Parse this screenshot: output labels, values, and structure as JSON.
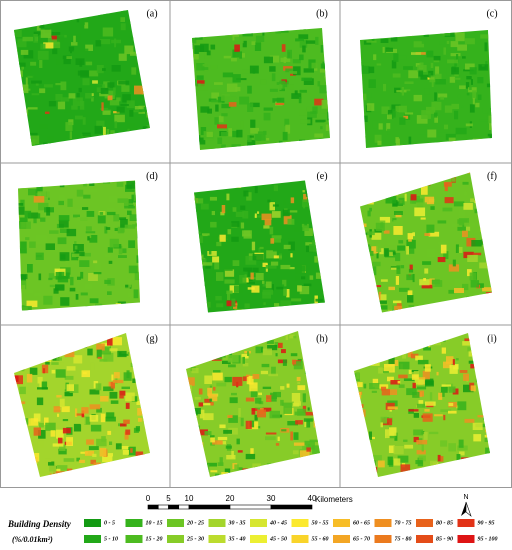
{
  "panels": [
    {
      "label": "(a)"
    },
    {
      "label": "(b)"
    },
    {
      "label": "(c)"
    },
    {
      "label": "(d)"
    },
    {
      "label": "(e)"
    },
    {
      "label": "(f)"
    },
    {
      "label": "(g)"
    },
    {
      "label": "(h)"
    },
    {
      "label": "(i)"
    }
  ],
  "scale_bar": {
    "labels": [
      "0",
      "5",
      "10",
      "20",
      "30",
      "40"
    ],
    "unit": "Kilometers"
  },
  "north_arrow": {
    "label": "N"
  },
  "legend": {
    "title": "Building Density",
    "unit": "(%/0.01km²)",
    "items": [
      {
        "label": "0 - 5",
        "color": "#139a13"
      },
      {
        "label": "5 - 10",
        "color": "#22a818"
      },
      {
        "label": "10 - 15",
        "color": "#35b21c"
      },
      {
        "label": "15 - 20",
        "color": "#4dbb20"
      },
      {
        "label": "20 - 25",
        "color": "#6cc524"
      },
      {
        "label": "25 - 30",
        "color": "#87cc28"
      },
      {
        "label": "30 - 35",
        "color": "#a3d52c"
      },
      {
        "label": "35 - 40",
        "color": "#bcdc2e"
      },
      {
        "label": "40 - 45",
        "color": "#d6e630"
      },
      {
        "label": "45 - 50",
        "color": "#ecef32"
      },
      {
        "label": "50 - 55",
        "color": "#fbe92e"
      },
      {
        "label": "55 - 60",
        "color": "#f9d42a"
      },
      {
        "label": "60 - 65",
        "color": "#f7bd27"
      },
      {
        "label": "65 - 70",
        "color": "#f3a624"
      },
      {
        "label": "70 - 75",
        "color": "#ef8f21"
      },
      {
        "label": "75 - 80",
        "color": "#eb7a1e"
      },
      {
        "label": "80 - 85",
        "color": "#e8621b"
      },
      {
        "label": "85 - 90",
        "color": "#e44c18"
      },
      {
        "label": "90 - 95",
        "color": "#e23216"
      },
      {
        "label": "95 - 100",
        "color": "#de1414"
      }
    ]
  }
}
